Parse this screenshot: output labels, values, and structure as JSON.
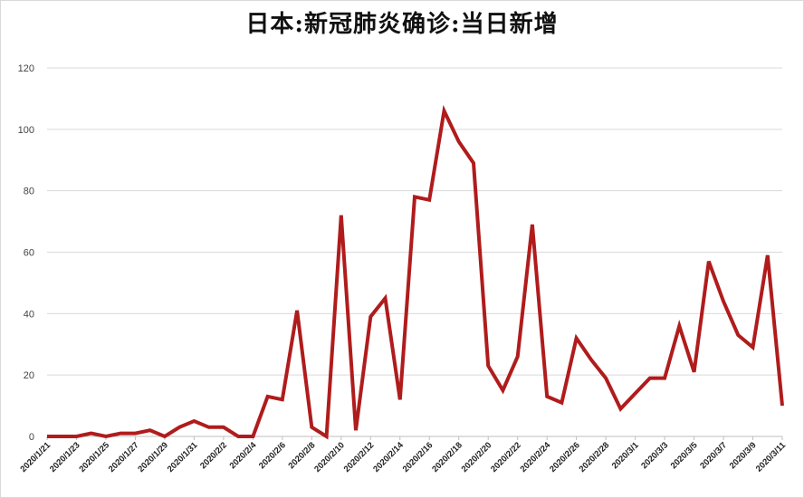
{
  "chart_data": {
    "type": "line",
    "title": "日本:新冠肺炎确诊:当日新增",
    "xlabel": "",
    "ylabel": "",
    "ylim": [
      0,
      120
    ],
    "yticks": [
      0,
      20,
      40,
      60,
      80,
      100,
      120
    ],
    "grid": true,
    "x": [
      "2020/1/21",
      "2020/1/22",
      "2020/1/23",
      "2020/1/24",
      "2020/1/25",
      "2020/1/26",
      "2020/1/27",
      "2020/1/28",
      "2020/1/29",
      "2020/1/30",
      "2020/1/31",
      "2020/2/1",
      "2020/2/2",
      "2020/2/3",
      "2020/2/4",
      "2020/2/5",
      "2020/2/6",
      "2020/2/7",
      "2020/2/8",
      "2020/2/9",
      "2020/2/10",
      "2020/2/11",
      "2020/2/12",
      "2020/2/13",
      "2020/2/14",
      "2020/2/15",
      "2020/2/16",
      "2020/2/17",
      "2020/2/18",
      "2020/2/19",
      "2020/2/20",
      "2020/2/21",
      "2020/2/22",
      "2020/2/23",
      "2020/2/24",
      "2020/2/25",
      "2020/2/26",
      "2020/2/27",
      "2020/2/28",
      "2020/2/29",
      "2020/3/1",
      "2020/3/2",
      "2020/3/3",
      "2020/3/4",
      "2020/3/5",
      "2020/3/6",
      "2020/3/7",
      "2020/3/8",
      "2020/3/9",
      "2020/3/10",
      "2020/3/11"
    ],
    "x_tick_labels": [
      "2020/1/21",
      "2020/1/23",
      "2020/1/25",
      "2020/1/27",
      "2020/1/29",
      "2020/1/31",
      "2020/2/2",
      "2020/2/4",
      "2020/2/6",
      "2020/2/8",
      "2020/2/10",
      "2020/2/12",
      "2020/2/14",
      "2020/2/16",
      "2020/2/18",
      "2020/2/20",
      "2020/2/22",
      "2020/2/24",
      "2020/2/26",
      "2020/2/28",
      "2020/3/1",
      "2020/3/3",
      "2020/3/5",
      "2020/3/7",
      "2020/3/9",
      "2020/3/11"
    ],
    "series": [
      {
        "color": "#b01c1c",
        "values": [
          0,
          0,
          0,
          1,
          0,
          1,
          1,
          2,
          0,
          3,
          5,
          3,
          3,
          0,
          0,
          13,
          12,
          41,
          3,
          0,
          72,
          2,
          39,
          45,
          12,
          78,
          77,
          106,
          96,
          89,
          23,
          15,
          26,
          69,
          13,
          11,
          32,
          25,
          19,
          9,
          14,
          19,
          19,
          36,
          21,
          57,
          44,
          33,
          29,
          59,
          10
        ]
      }
    ]
  }
}
